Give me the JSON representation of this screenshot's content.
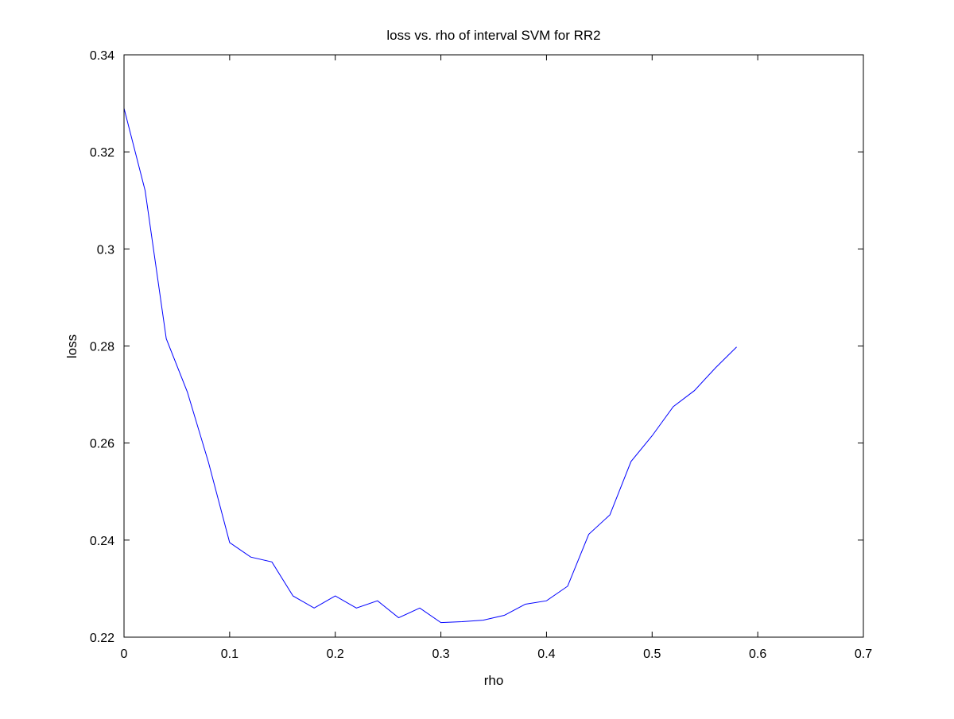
{
  "chart_data": {
    "type": "line",
    "title": "loss vs. rho of interval SVM for RR2",
    "xlabel": "rho",
    "ylabel": "loss",
    "xlim": [
      0,
      0.7
    ],
    "ylim": [
      0.22,
      0.34
    ],
    "xticks": [
      0,
      0.1,
      0.2,
      0.3,
      0.4,
      0.5,
      0.6,
      0.7
    ],
    "xtick_labels": [
      "0",
      "0.1",
      "0.2",
      "0.3",
      "0.4",
      "0.5",
      "0.6",
      "0.7"
    ],
    "yticks": [
      0.22,
      0.24,
      0.26,
      0.28,
      0.3,
      0.32,
      0.34
    ],
    "ytick_labels": [
      "0.22",
      "0.24",
      "0.26",
      "0.28",
      "0.3",
      "0.32",
      "0.34"
    ],
    "grid": false,
    "series": [
      {
        "color": "#0000ff",
        "x": [
          0,
          0.02,
          0.04,
          0.06,
          0.08,
          0.1,
          0.12,
          0.14,
          0.16,
          0.18,
          0.2,
          0.22,
          0.24,
          0.26,
          0.28,
          0.3,
          0.32,
          0.34,
          0.36,
          0.38,
          0.4,
          0.42,
          0.44,
          0.46,
          0.48,
          0.5,
          0.52,
          0.54,
          0.56,
          0.58
        ],
        "y": [
          0.329,
          0.312,
          0.2815,
          0.2705,
          0.256,
          0.2395,
          0.2365,
          0.2355,
          0.2285,
          0.226,
          0.2285,
          0.226,
          0.2275,
          0.224,
          0.226,
          0.223,
          0.2232,
          0.2235,
          0.2245,
          0.2268,
          0.2275,
          0.2305,
          0.2412,
          0.2452,
          0.2562,
          0.2615,
          0.2675,
          0.2708,
          0.2755,
          0.2798
        ]
      }
    ]
  }
}
